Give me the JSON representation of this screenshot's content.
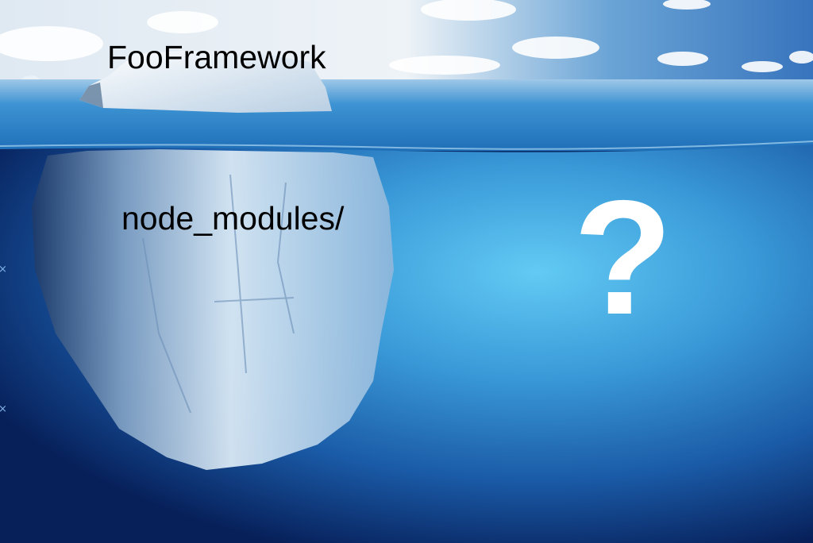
{
  "meme": {
    "caption_top": "FooFramework",
    "caption_bottom": "node_modules/",
    "question_mark": "?"
  },
  "colors": {
    "sky_top": "#3f7fc4",
    "sky_light": "#e9f1f7",
    "sea_surface": "#2e8fd0",
    "underwater_light": "#5fc8f2",
    "underwater_dark": "#0b2f6b",
    "ice": "#eef5fb",
    "text_dark": "#000000",
    "text_light": "#ffffff"
  },
  "icons": [
    "cloud-shape",
    "iceberg-shape"
  ]
}
